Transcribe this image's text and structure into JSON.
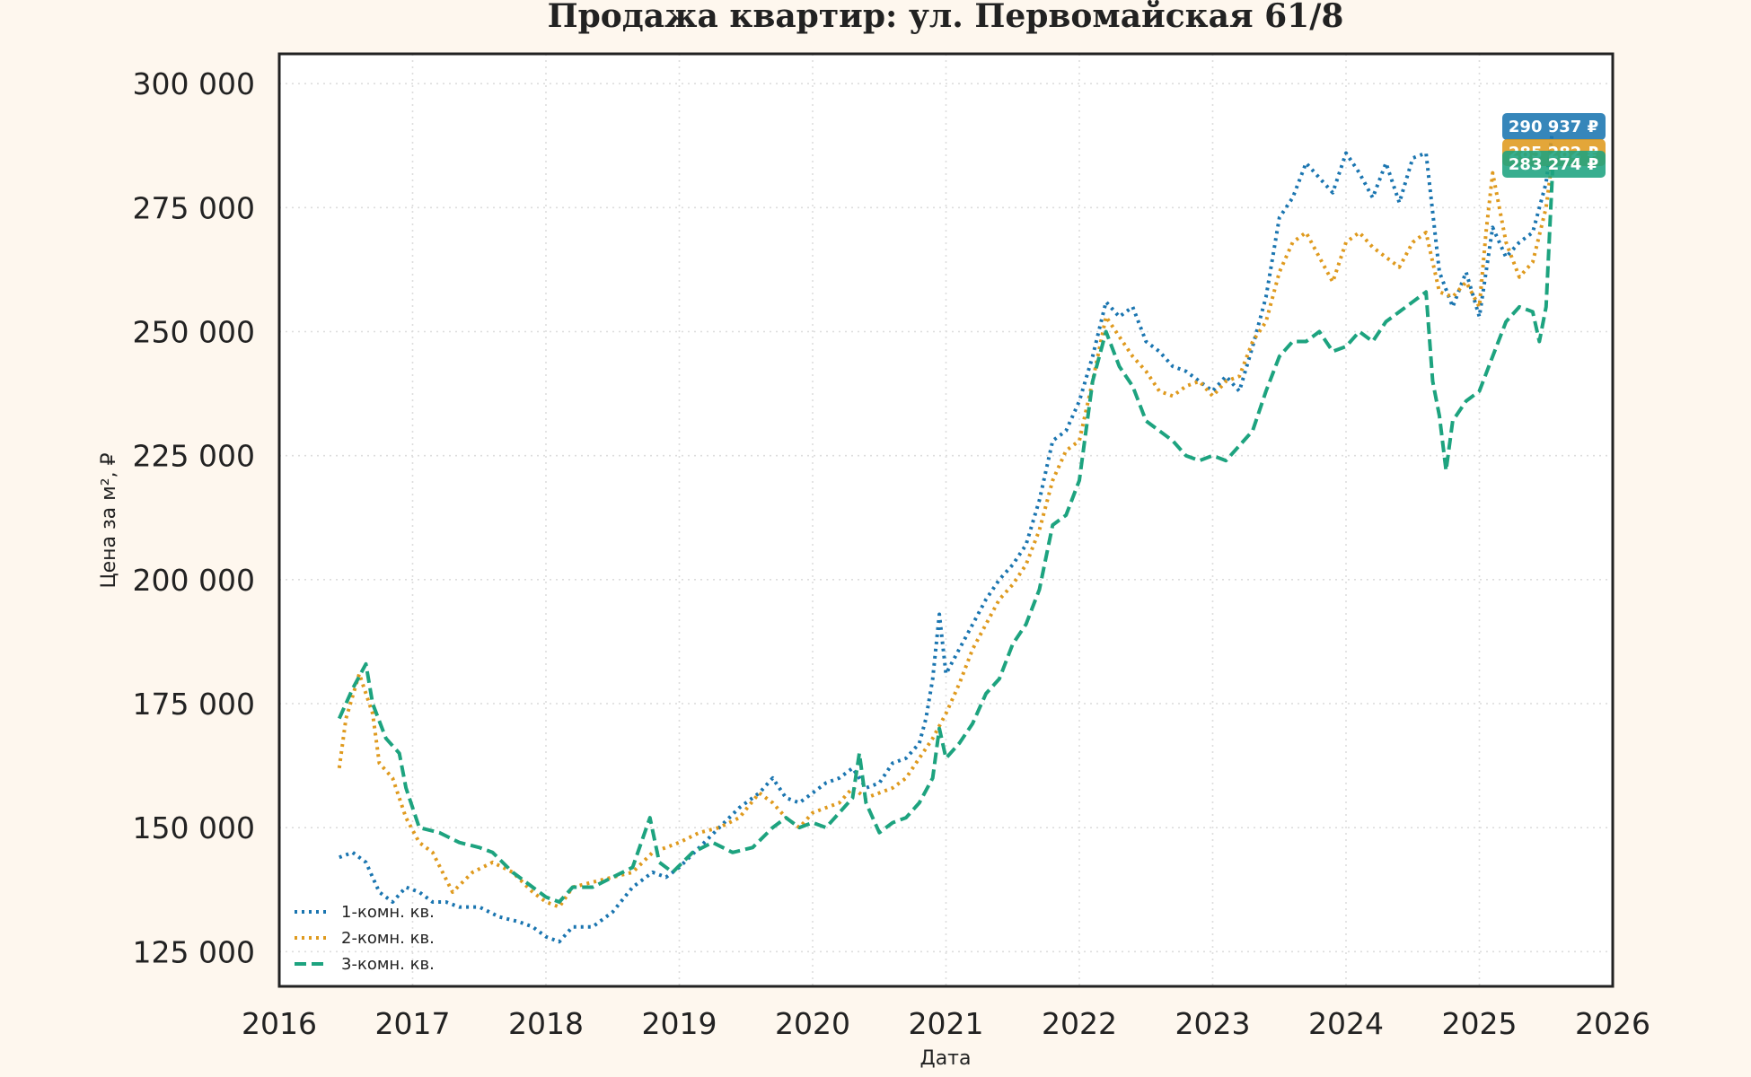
{
  "chart_data": {
    "type": "line",
    "title": "Продажа квартир: ул. Первомайская 61/8",
    "xlabel": "Дата",
    "ylabel": "Цена за м², ₽",
    "xlim": [
      2016,
      2026
    ],
    "ylim": [
      118000,
      306000
    ],
    "x_ticks": [
      2016,
      2017,
      2018,
      2019,
      2020,
      2021,
      2022,
      2023,
      2024,
      2025,
      2026
    ],
    "x_tick_labels": [
      "2016",
      "2017",
      "2018",
      "2019",
      "2020",
      "2021",
      "2022",
      "2023",
      "2024",
      "2025",
      "2026"
    ],
    "y_ticks": [
      125000,
      150000,
      175000,
      200000,
      225000,
      250000,
      275000,
      300000
    ],
    "y_tick_labels": [
      "125 000",
      "150 000",
      "175 000",
      "200 000",
      "225 000",
      "250 000",
      "275 000",
      "300 000"
    ],
    "grid": true,
    "legend_position": "bottom-left",
    "background": "#fef7ee",
    "plot_background": "#ffffff",
    "series": [
      {
        "name": "1-комн. кв.",
        "color": "#1a75b0",
        "dash": "dotted",
        "last_value_label": "290 937 ₽",
        "x": [
          2016.45,
          2016.55,
          2016.65,
          2016.75,
          2016.85,
          2016.95,
          2017.05,
          2017.15,
          2017.25,
          2017.35,
          2017.5,
          2017.65,
          2017.8,
          2017.9,
          2018.0,
          2018.1,
          2018.2,
          2018.35,
          2018.5,
          2018.65,
          2018.8,
          2018.9,
          2019.0,
          2019.15,
          2019.3,
          2019.45,
          2019.6,
          2019.7,
          2019.8,
          2019.9,
          2020.0,
          2020.1,
          2020.2,
          2020.3,
          2020.4,
          2020.5,
          2020.6,
          2020.7,
          2020.8,
          2020.85,
          2020.9,
          2020.95,
          2021.0,
          2021.1,
          2021.2,
          2021.3,
          2021.4,
          2021.5,
          2021.6,
          2021.7,
          2021.8,
          2021.9,
          2022.0,
          2022.1,
          2022.2,
          2022.3,
          2022.4,
          2022.5,
          2022.6,
          2022.7,
          2022.8,
          2022.9,
          2023.0,
          2023.1,
          2023.2,
          2023.3,
          2023.4,
          2023.5,
          2023.6,
          2023.7,
          2023.8,
          2023.9,
          2024.0,
          2024.1,
          2024.2,
          2024.3,
          2024.4,
          2024.5,
          2024.6,
          2024.7,
          2024.8,
          2024.9,
          2025.0,
          2025.1,
          2025.2,
          2025.3,
          2025.4,
          2025.5,
          2025.55
        ],
        "values": [
          144000,
          145000,
          143000,
          137000,
          135000,
          138000,
          137000,
          135000,
          135000,
          134000,
          134000,
          132000,
          131000,
          130000,
          128000,
          127000,
          130000,
          130000,
          133000,
          138000,
          141000,
          140000,
          142000,
          146000,
          150000,
          154000,
          157000,
          160000,
          156000,
          155000,
          157000,
          159000,
          160000,
          162000,
          158000,
          159000,
          163000,
          164000,
          167000,
          172000,
          180000,
          193000,
          181000,
          186000,
          191000,
          196000,
          200000,
          203000,
          207000,
          216000,
          228000,
          230000,
          236000,
          245000,
          256000,
          253000,
          255000,
          248000,
          246000,
          243000,
          242000,
          240000,
          238000,
          241000,
          238000,
          247000,
          257000,
          273000,
          277000,
          284000,
          281000,
          278000,
          286000,
          282000,
          277000,
          284000,
          276000,
          285000,
          286000,
          262000,
          255000,
          262000,
          253000,
          271000,
          265000,
          268000,
          270000,
          280000,
          290937
        ]
      },
      {
        "name": "2-комн. кв.",
        "color": "#df9a1e",
        "dash": "dotted",
        "last_value_label": "285 282 ₽",
        "x": [
          2016.45,
          2016.5,
          2016.6,
          2016.7,
          2016.75,
          2016.85,
          2016.95,
          2017.05,
          2017.15,
          2017.3,
          2017.45,
          2017.6,
          2017.75,
          2017.9,
          2018.0,
          2018.1,
          2018.2,
          2018.35,
          2018.5,
          2018.65,
          2018.8,
          2018.9,
          2019.0,
          2019.15,
          2019.3,
          2019.45,
          2019.6,
          2019.7,
          2019.8,
          2019.9,
          2020.0,
          2020.1,
          2020.2,
          2020.3,
          2020.4,
          2020.5,
          2020.6,
          2020.7,
          2020.8,
          2020.9,
          2021.0,
          2021.1,
          2021.2,
          2021.3,
          2021.4,
          2021.5,
          2021.6,
          2021.7,
          2021.8,
          2021.9,
          2022.0,
          2022.1,
          2022.2,
          2022.3,
          2022.4,
          2022.5,
          2022.6,
          2022.7,
          2022.8,
          2022.9,
          2023.0,
          2023.1,
          2023.2,
          2023.3,
          2023.4,
          2023.5,
          2023.6,
          2023.7,
          2023.8,
          2023.9,
          2024.0,
          2024.1,
          2024.2,
          2024.3,
          2024.4,
          2024.5,
          2024.6,
          2024.7,
          2024.8,
          2024.9,
          2025.0,
          2025.05,
          2025.1,
          2025.2,
          2025.3,
          2025.4,
          2025.5,
          2025.55
        ],
        "values": [
          162000,
          172000,
          181000,
          173000,
          163000,
          160000,
          152000,
          147000,
          145000,
          137000,
          141000,
          143000,
          141000,
          137000,
          135000,
          134000,
          138000,
          139000,
          140000,
          141000,
          145000,
          146000,
          147000,
          149000,
          150000,
          152000,
          157000,
          155000,
          152000,
          150000,
          153000,
          154000,
          155000,
          158000,
          156000,
          157000,
          158000,
          160000,
          164000,
          168000,
          173000,
          179000,
          186000,
          191000,
          196000,
          199000,
          203000,
          210000,
          220000,
          226000,
          228000,
          240000,
          253000,
          249000,
          245000,
          242000,
          238000,
          237000,
          239000,
          240000,
          237000,
          240000,
          241000,
          248000,
          252000,
          262000,
          268000,
          270000,
          265000,
          260000,
          268000,
          270000,
          267000,
          265000,
          263000,
          268000,
          270000,
          258000,
          257000,
          260000,
          255000,
          270000,
          282000,
          268000,
          261000,
          264000,
          275000,
          285282
        ]
      },
      {
        "name": "3-комн. кв.",
        "color": "#1da37f",
        "dash": "dashed",
        "last_value_label": "283 274 ₽",
        "x": [
          2016.45,
          2016.55,
          2016.65,
          2016.7,
          2016.8,
          2016.9,
          2016.95,
          2017.05,
          2017.2,
          2017.35,
          2017.5,
          2017.6,
          2017.75,
          2017.9,
          2018.0,
          2018.1,
          2018.2,
          2018.35,
          2018.5,
          2018.65,
          2018.78,
          2018.85,
          2018.95,
          2019.1,
          2019.25,
          2019.4,
          2019.55,
          2019.7,
          2019.8,
          2019.9,
          2020.0,
          2020.1,
          2020.2,
          2020.3,
          2020.35,
          2020.4,
          2020.5,
          2020.6,
          2020.7,
          2020.8,
          2020.9,
          2020.95,
          2021.0,
          2021.1,
          2021.2,
          2021.3,
          2021.4,
          2021.5,
          2021.6,
          2021.7,
          2021.8,
          2021.9,
          2022.0,
          2022.1,
          2022.2,
          2022.3,
          2022.4,
          2022.5,
          2022.6,
          2022.7,
          2022.8,
          2022.9,
          2023.0,
          2023.1,
          2023.2,
          2023.3,
          2023.4,
          2023.5,
          2023.6,
          2023.7,
          2023.8,
          2023.9,
          2024.0,
          2024.1,
          2024.2,
          2024.3,
          2024.4,
          2024.5,
          2024.6,
          2024.65,
          2024.7,
          2024.75,
          2024.8,
          2024.9,
          2025.0,
          2025.1,
          2025.2,
          2025.3,
          2025.4,
          2025.45,
          2025.5,
          2025.55
        ],
        "values": [
          172000,
          178000,
          183000,
          175000,
          168000,
          165000,
          158000,
          150000,
          149000,
          147000,
          146000,
          145000,
          141000,
          138000,
          136000,
          135000,
          138000,
          138000,
          140000,
          142000,
          152000,
          143000,
          141000,
          145000,
          147000,
          145000,
          146000,
          150000,
          152000,
          150000,
          151000,
          150000,
          153000,
          156000,
          165000,
          155000,
          149000,
          151000,
          152000,
          155000,
          160000,
          170000,
          164000,
          167000,
          171000,
          177000,
          180000,
          187000,
          191000,
          198000,
          211000,
          213000,
          220000,
          240000,
          250000,
          243000,
          239000,
          232000,
          230000,
          228000,
          225000,
          224000,
          225000,
          224000,
          227000,
          230000,
          238000,
          245000,
          248000,
          248000,
          250000,
          246000,
          247000,
          250000,
          248000,
          252000,
          254000,
          256000,
          258000,
          240000,
          233000,
          222000,
          232000,
          236000,
          238000,
          245000,
          252000,
          255000,
          254000,
          248000,
          255000,
          283274
        ]
      }
    ]
  }
}
